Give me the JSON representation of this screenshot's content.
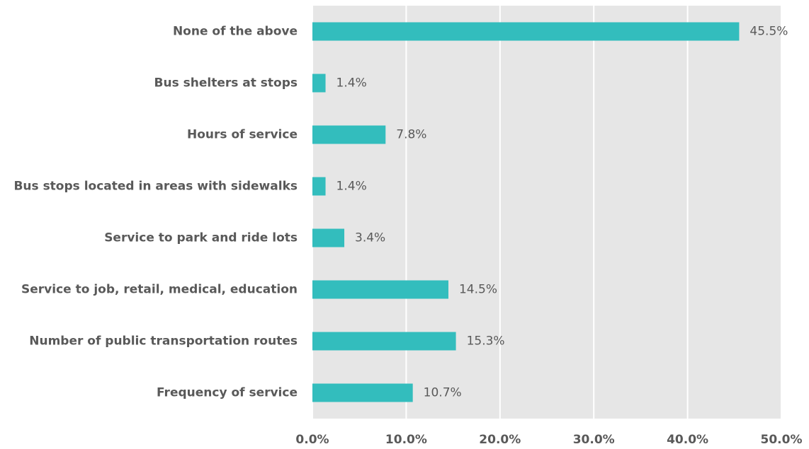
{
  "chart_data": {
    "type": "hbar",
    "categories": [
      "None of the above",
      "Bus shelters at stops",
      "Hours of service",
      "Bus stops located in areas with sidewalks",
      "Service to park and ride lots",
      "Service to job, retail, medical, education",
      "Number of public transportation routes",
      "Frequency of service"
    ],
    "values": [
      45.5,
      1.4,
      7.8,
      1.4,
      3.4,
      14.5,
      15.3,
      10.7
    ],
    "value_labels": [
      "45.5%",
      "1.4%",
      "7.8%",
      "1.4%",
      "3.4%",
      "14.5%",
      "15.3%",
      "10.7%"
    ],
    "color": "#33bdbd",
    "xlim": [
      0,
      50
    ],
    "xticks": [
      {
        "value": 0,
        "label": "0.0%"
      },
      {
        "value": 10,
        "label": "10.0%"
      },
      {
        "value": 20,
        "label": "20.0%"
      },
      {
        "value": 30,
        "label": "30.0%"
      },
      {
        "value": 40,
        "label": "40.0%"
      },
      {
        "value": 50,
        "label": "50.0%"
      }
    ],
    "grid": true
  }
}
